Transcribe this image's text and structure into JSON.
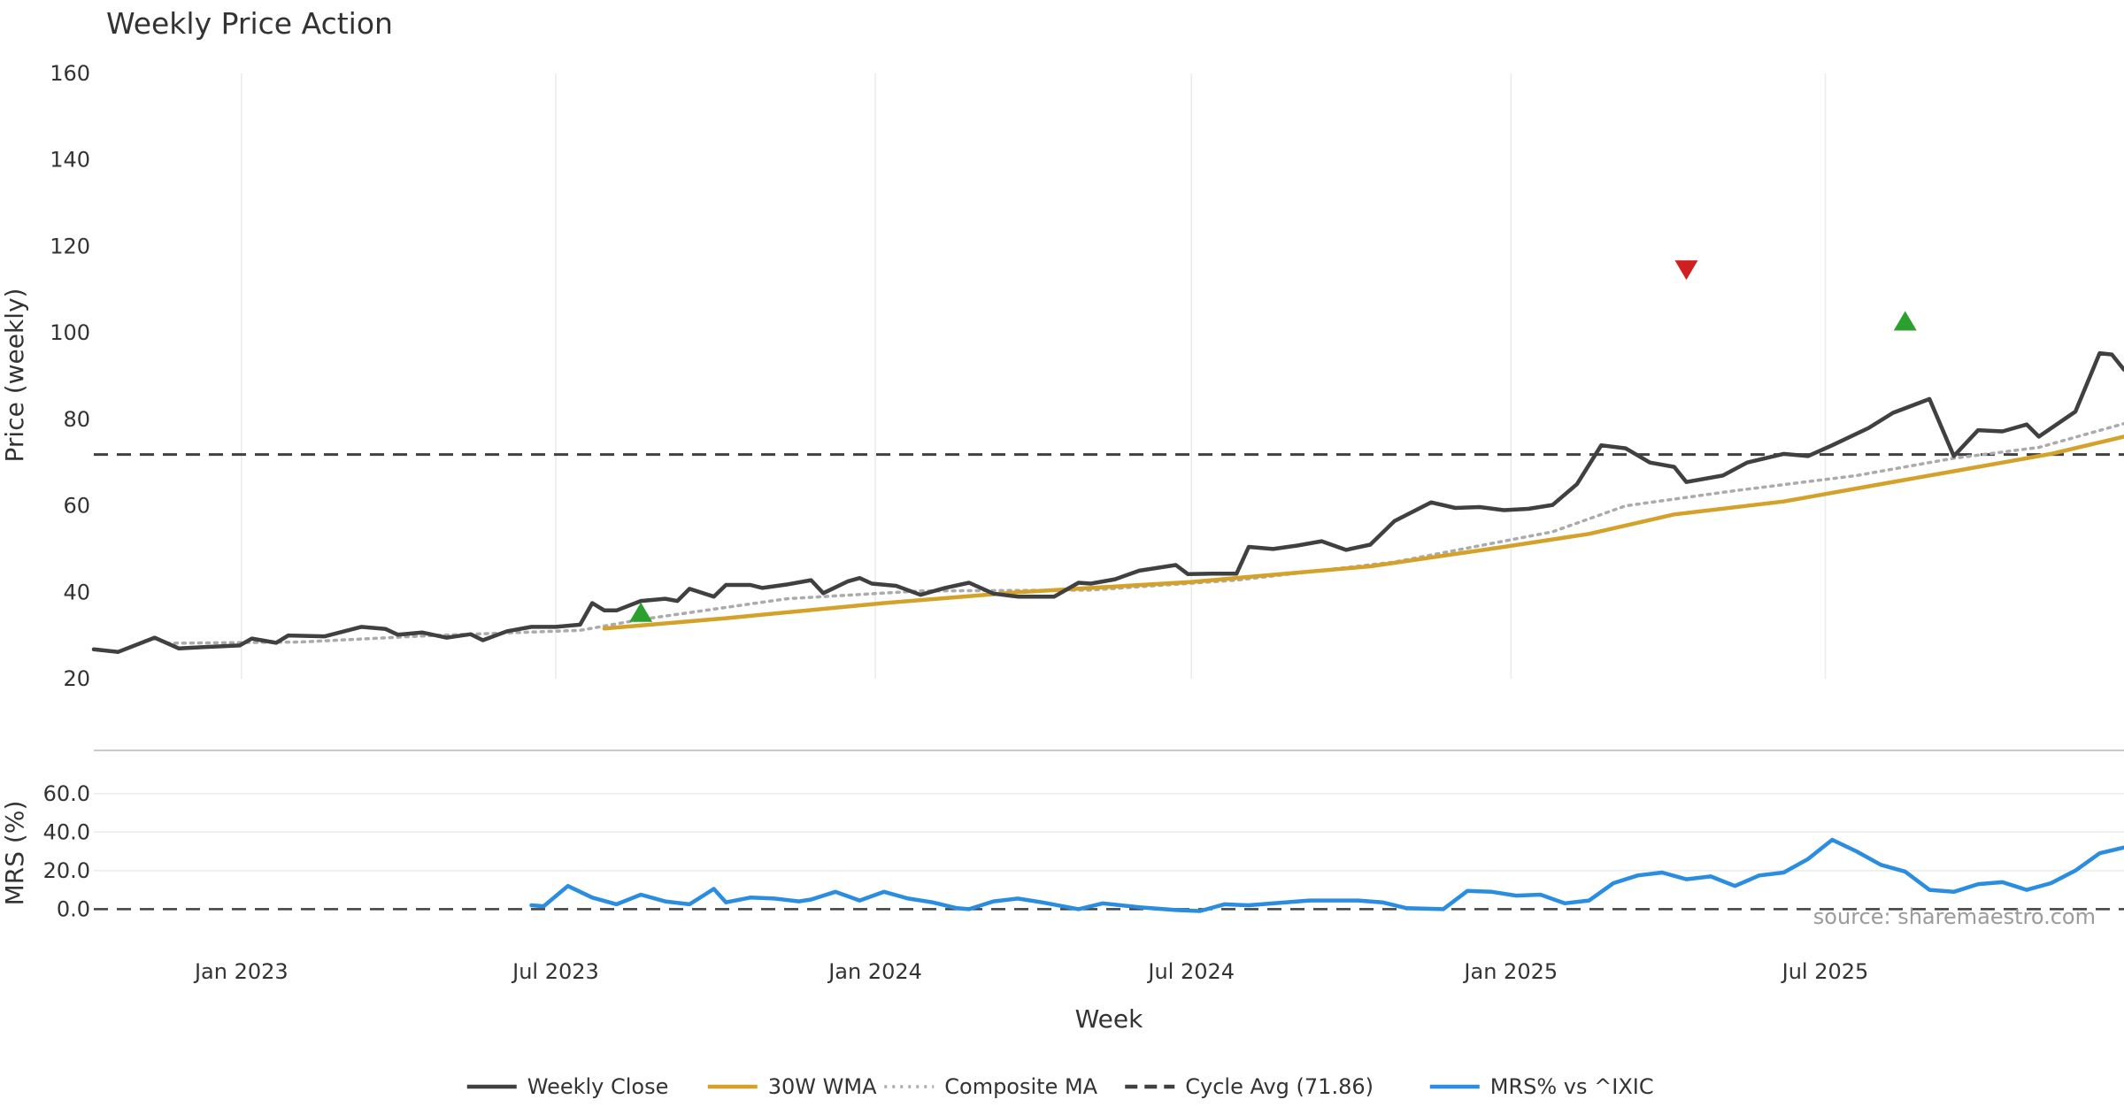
{
  "chart_data": [
    {
      "panel": "price",
      "type": "line",
      "title": "Weekly Price Action",
      "ylabel": "Price (weekly)",
      "xlabel": "Week",
      "ylim": [
        20,
        160
      ],
      "yticks": [
        20,
        40,
        60,
        80,
        100,
        120,
        140,
        160
      ],
      "x_range": [
        "2022-10-08",
        "2025-12-20"
      ],
      "xticks": [
        {
          "date": "2023-01-01",
          "label": "Jan 2023"
        },
        {
          "date": "2023-07-01",
          "label": "Jul 2023"
        },
        {
          "date": "2024-01-01",
          "label": "Jan 2024"
        },
        {
          "date": "2024-07-01",
          "label": "Jul 2024"
        },
        {
          "date": "2025-01-01",
          "label": "Jan 2025"
        },
        {
          "date": "2025-07-01",
          "label": "Jul 2025"
        }
      ],
      "vertical_grid": true,
      "series": [
        {
          "name": "Weekly Close",
          "color": "#404040",
          "style": "solid",
          "points": [
            [
              "2022-10-08",
              26.8
            ],
            [
              "2022-10-22",
              26.2
            ],
            [
              "2022-11-12",
              29.5
            ],
            [
              "2022-11-26",
              27
            ],
            [
              "2022-12-10",
              27.3
            ],
            [
              "2022-12-31",
              27.7
            ],
            [
              "2023-01-07",
              29.3
            ],
            [
              "2023-01-21",
              28.3
            ],
            [
              "2023-01-28",
              30
            ],
            [
              "2023-02-18",
              29.8
            ],
            [
              "2023-03-11",
              32
            ],
            [
              "2023-03-25",
              31.5
            ],
            [
              "2023-04-01",
              30.2
            ],
            [
              "2023-04-15",
              30.7
            ],
            [
              "2023-04-29",
              29.5
            ],
            [
              "2023-05-13",
              30.3
            ],
            [
              "2023-05-20",
              28.9
            ],
            [
              "2023-06-03",
              31
            ],
            [
              "2023-06-17",
              32
            ],
            [
              "2023-07-01",
              32
            ],
            [
              "2023-07-15",
              32.5
            ],
            [
              "2023-07-22",
              37.5
            ],
            [
              "2023-07-29",
              35.8
            ],
            [
              "2023-08-05",
              35.8
            ],
            [
              "2023-08-19",
              38
            ],
            [
              "2023-09-02",
              38.5
            ],
            [
              "2023-09-09",
              38
            ],
            [
              "2023-09-16",
              40.8
            ],
            [
              "2023-09-30",
              39
            ],
            [
              "2023-10-07",
              41.7
            ],
            [
              "2023-10-21",
              41.7
            ],
            [
              "2023-10-28",
              41
            ],
            [
              "2023-11-11",
              41.8
            ],
            [
              "2023-11-25",
              42.8
            ],
            [
              "2023-12-02",
              39.8
            ],
            [
              "2023-12-16",
              42.5
            ],
            [
              "2023-12-23",
              43.3
            ],
            [
              "2023-12-30",
              42
            ],
            [
              "2024-01-13",
              41.5
            ],
            [
              "2024-01-27",
              39.4
            ],
            [
              "2024-02-10",
              41
            ],
            [
              "2024-02-24",
              42.2
            ],
            [
              "2024-03-09",
              39.7
            ],
            [
              "2024-03-23",
              39
            ],
            [
              "2024-04-13",
              39
            ],
            [
              "2024-04-27",
              42.2
            ],
            [
              "2024-05-04",
              42
            ],
            [
              "2024-05-18",
              43
            ],
            [
              "2024-06-01",
              45
            ],
            [
              "2024-06-22",
              46.3
            ],
            [
              "2024-06-29",
              44.2
            ],
            [
              "2024-07-13",
              44.3
            ],
            [
              "2024-07-27",
              44.3
            ],
            [
              "2024-08-03",
              50.5
            ],
            [
              "2024-08-17",
              50
            ],
            [
              "2024-08-31",
              50.8
            ],
            [
              "2024-09-14",
              51.8
            ],
            [
              "2024-09-28",
              49.8
            ],
            [
              "2024-10-12",
              51
            ],
            [
              "2024-10-26",
              56.5
            ],
            [
              "2024-11-16",
              60.8
            ],
            [
              "2024-11-30",
              59.5
            ],
            [
              "2024-12-14",
              59.7
            ],
            [
              "2024-12-28",
              59
            ],
            [
              "2025-01-11",
              59.3
            ],
            [
              "2025-01-25",
              60.2
            ],
            [
              "2025-02-08",
              65
            ],
            [
              "2025-02-22",
              74
            ],
            [
              "2025-03-08",
              73.3
            ],
            [
              "2025-03-22",
              70
            ],
            [
              "2025-04-05",
              69
            ],
            [
              "2025-04-12",
              65.5
            ],
            [
              "2025-05-03",
              67
            ],
            [
              "2025-05-17",
              70
            ],
            [
              "2025-06-07",
              72
            ],
            [
              "2025-06-21",
              71.5
            ],
            [
              "2025-07-05",
              74
            ],
            [
              "2025-07-26",
              78
            ],
            [
              "2025-08-09",
              81.5
            ],
            [
              "2025-08-30",
              84.7
            ],
            [
              "2025-09-13",
              71.5
            ],
            [
              "2025-09-27",
              77.5
            ],
            [
              "2025-10-11",
              77.2
            ],
            [
              "2025-10-25",
              78.8
            ],
            [
              "2025-11-01",
              76
            ],
            [
              "2025-11-22",
              81.8
            ],
            [
              "2025-12-06",
              95.3
            ],
            [
              "2025-12-13",
              95
            ],
            [
              "2025-12-20",
              91.5
            ]
          ]
        },
        {
          "name": "30W WMA",
          "color": "#d4a22a",
          "style": "solid",
          "points": [
            [
              "2023-07-29",
              31.6
            ],
            [
              "2023-10-07",
              34
            ],
            [
              "2024-01-06",
              37.5
            ],
            [
              "2024-03-23",
              40
            ],
            [
              "2024-07-01",
              42.4
            ],
            [
              "2024-10-12",
              46
            ],
            [
              "2024-12-28",
              50.5
            ],
            [
              "2025-02-15",
              53.5
            ],
            [
              "2025-04-05",
              58
            ],
            [
              "2025-06-07",
              61
            ],
            [
              "2025-07-19",
              64
            ],
            [
              "2025-09-13",
              68
            ],
            [
              "2025-11-08",
              72
            ],
            [
              "2025-12-20",
              76
            ]
          ]
        },
        {
          "name": "Composite MA",
          "color": "#ababab",
          "style": "dotted",
          "points": [
            [
              "2022-11-19",
              28.2
            ],
            [
              "2023-02-04",
              28.5
            ],
            [
              "2023-04-22",
              30
            ],
            [
              "2023-07-15",
              31.2
            ],
            [
              "2023-08-19",
              33.7
            ],
            [
              "2023-11-11",
              38.5
            ],
            [
              "2024-01-27",
              40.3
            ],
            [
              "2024-05-04",
              40.5
            ],
            [
              "2024-07-27",
              42.8
            ],
            [
              "2024-10-26",
              47
            ],
            [
              "2025-01-25",
              54
            ],
            [
              "2025-03-08",
              60
            ],
            [
              "2025-05-10",
              63.5
            ],
            [
              "2025-07-19",
              67
            ],
            [
              "2025-09-13",
              71
            ],
            [
              "2025-11-01",
              73.5
            ],
            [
              "2025-12-20",
              79
            ]
          ]
        }
      ],
      "reference_line": {
        "name": "Cycle Avg (71.86)",
        "value": 71.86,
        "color": "#404040",
        "style": "dashed"
      },
      "signals": [
        {
          "type": "buy",
          "date": "2023-08-19",
          "value": 35.4,
          "color": "#2ca02c"
        },
        {
          "type": "sell",
          "date": "2025-04-12",
          "value": 114.5,
          "color": "#d01f1f"
        },
        {
          "type": "buy",
          "date": "2025-08-16",
          "value": 102.8,
          "color": "#2ca02c"
        }
      ]
    },
    {
      "panel": "mrs",
      "type": "line",
      "ylabel": "MRS (%)",
      "ylim": [
        -15,
        70
      ],
      "yticks": [
        {
          "value": 0,
          "label": "0.0"
        },
        {
          "value": 20,
          "label": "20.0"
        },
        {
          "value": 40,
          "label": "40.0"
        },
        {
          "value": 60,
          "label": "60.0"
        }
      ],
      "series": [
        {
          "name": "MRS% vs ^IXIC",
          "color": "#2b8de0",
          "style": "solid",
          "points": [
            [
              "2023-06-17",
              2
            ],
            [
              "2023-06-24",
              1.5
            ],
            [
              "2023-07-08",
              12
            ],
            [
              "2023-07-22",
              6
            ],
            [
              "2023-08-05",
              2.5
            ],
            [
              "2023-08-19",
              7.5
            ],
            [
              "2023-09-02",
              4
            ],
            [
              "2023-09-16",
              2.5
            ],
            [
              "2023-09-30",
              10.5
            ],
            [
              "2023-10-07",
              3.5
            ],
            [
              "2023-10-21",
              6
            ],
            [
              "2023-11-04",
              5.5
            ],
            [
              "2023-11-18",
              4
            ],
            [
              "2023-11-25",
              5
            ],
            [
              "2023-12-09",
              9
            ],
            [
              "2023-12-23",
              4.5
            ],
            [
              "2024-01-06",
              9
            ],
            [
              "2024-01-20",
              5.5
            ],
            [
              "2024-02-03",
              3.5
            ],
            [
              "2024-02-17",
              0.5
            ],
            [
              "2024-02-24",
              0
            ],
            [
              "2024-03-09",
              4
            ],
            [
              "2024-03-23",
              5.5
            ],
            [
              "2024-04-06",
              3.5
            ],
            [
              "2024-04-27",
              0
            ],
            [
              "2024-05-11",
              3
            ],
            [
              "2024-06-01",
              1
            ],
            [
              "2024-06-22",
              -0.5
            ],
            [
              "2024-07-06",
              -1
            ],
            [
              "2024-07-20",
              2.5
            ],
            [
              "2024-08-03",
              2
            ],
            [
              "2024-08-24",
              3.5
            ],
            [
              "2024-09-07",
              4.5
            ],
            [
              "2024-10-05",
              4.5
            ],
            [
              "2024-10-19",
              3.5
            ],
            [
              "2024-11-02",
              0.5
            ],
            [
              "2024-11-23",
              0
            ],
            [
              "2024-12-07",
              9.5
            ],
            [
              "2024-12-21",
              9
            ],
            [
              "2025-01-04",
              7
            ],
            [
              "2025-01-18",
              7.5
            ],
            [
              "2025-02-01",
              3
            ],
            [
              "2025-02-15",
              4.5
            ],
            [
              "2025-03-01",
              13.5
            ],
            [
              "2025-03-15",
              17.5
            ],
            [
              "2025-03-29",
              19
            ],
            [
              "2025-04-12",
              15.5
            ],
            [
              "2025-04-26",
              17
            ],
            [
              "2025-05-10",
              12
            ],
            [
              "2025-05-24",
              17.5
            ],
            [
              "2025-06-07",
              19
            ],
            [
              "2025-06-21",
              26
            ],
            [
              "2025-07-05",
              36
            ],
            [
              "2025-07-19",
              30
            ],
            [
              "2025-08-02",
              23
            ],
            [
              "2025-08-16",
              19.5
            ],
            [
              "2025-08-30",
              10
            ],
            [
              "2025-09-13",
              9
            ],
            [
              "2025-09-27",
              13
            ],
            [
              "2025-10-11",
              14
            ],
            [
              "2025-10-25",
              10
            ],
            [
              "2025-11-08",
              13.5
            ],
            [
              "2025-11-22",
              20
            ],
            [
              "2025-12-06",
              29
            ],
            [
              "2025-12-20",
              32
            ]
          ]
        }
      ],
      "reference_line": {
        "value": 0,
        "color": "#404040",
        "style": "dashed"
      }
    }
  ],
  "legend": {
    "position": "bottom-center",
    "items": [
      {
        "label": "Weekly Close",
        "color": "#404040",
        "style": "solid"
      },
      {
        "label": "30W WMA",
        "color": "#d4a22a",
        "style": "solid"
      },
      {
        "label": "Composite MA",
        "color": "#ababab",
        "style": "dotted"
      },
      {
        "label": "Cycle Avg (71.86)",
        "color": "#404040",
        "style": "dashed"
      },
      {
        "label": "MRS% vs ^IXIC",
        "color": "#2b8de0",
        "style": "solid"
      }
    ]
  },
  "source_note": "source: sharemaestro.com"
}
